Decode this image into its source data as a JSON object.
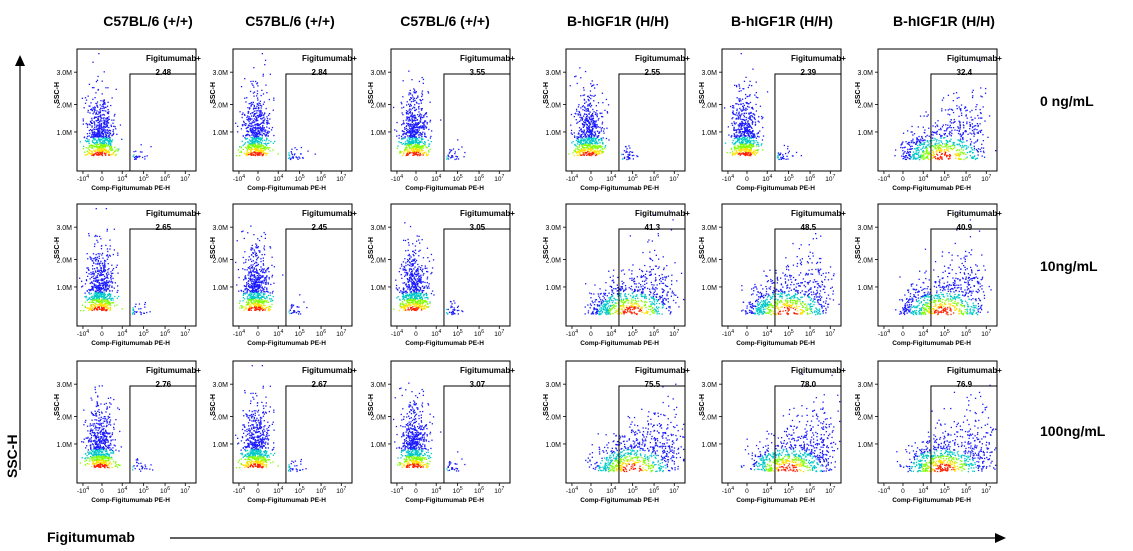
{
  "column_headers": [
    "C57BL/6 (+/+)",
    "C57BL/6 (+/+)",
    "C57BL/6 (+/+)",
    "B-hIGF1R (H/H)",
    "B-hIGF1R (H/H)",
    "B-hIGF1R (H/H)"
  ],
  "row_labels": [
    "0 ng/mL",
    "10ng/mL",
    "100ng/mL"
  ],
  "y_axis_label": "SSC-H",
  "x_axis_label": "Figitumumab",
  "chart_data": {
    "type": "scatter",
    "panel_y_axis_label": "SSC-H",
    "panel_x_axis_label": "Comp-Figitumumab PE-H",
    "gate_label": "Figitumumab+",
    "y_ticks": [
      "1.0M",
      "2.0M",
      "3.0M"
    ],
    "x_ticks": [
      "-10^4",
      "0",
      "10^4",
      "10^5",
      "10^6",
      "10^7"
    ],
    "x_scale": "biexponential",
    "gate_percentages": [
      [
        "2.48",
        "2.84",
        "3.55",
        "2.55",
        "2.39",
        "32.4"
      ],
      [
        "2.65",
        "2.45",
        "3.05",
        "41.3",
        "48.5",
        "40.9"
      ],
      [
        "2.76",
        "2.67",
        "3.07",
        "75.5",
        "78.0",
        "76.9"
      ]
    ]
  },
  "colors": {
    "density_low": "#1a1aff",
    "density_mid": "#00c8c8",
    "density_high_1": "#7fff00",
    "density_high_2": "#ffe000",
    "density_peak": "#ff2000"
  }
}
